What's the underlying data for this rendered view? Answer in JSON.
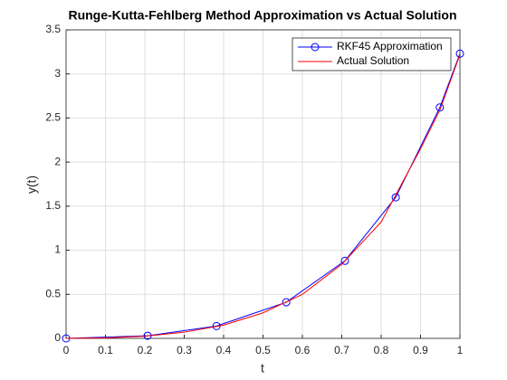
{
  "chart_data": {
    "type": "line",
    "title": "Runge-Kutta-Fehlberg Method Approximation vs Actual Solution",
    "x_label": "t",
    "y_label": "y(t)",
    "xlim": [
      0,
      1
    ],
    "xticks": [
      0,
      0.1,
      0.2,
      0.3,
      0.4,
      0.5,
      0.6,
      0.7,
      0.8,
      0.9,
      1
    ],
    "ylim": [
      0,
      3.5
    ],
    "yticks": [
      0,
      0.5,
      1,
      1.5,
      2,
      2.5,
      3,
      3.5
    ],
    "grid": true,
    "legend": "top-right",
    "series": [
      {
        "name": "RKF45 Approximation",
        "color": "#0000ff",
        "marker": "circle",
        "x": [
          0,
          0.207,
          0.382,
          0.559,
          0.708,
          0.837,
          0.949,
          1
        ],
        "values": [
          0,
          0.03,
          0.14,
          0.41,
          0.88,
          1.6,
          2.62,
          3.23
        ]
      },
      {
        "name": "Actual Solution",
        "color": "#ff0000",
        "x": [
          0,
          0.1,
          0.2,
          0.3,
          0.4,
          0.5,
          0.6,
          0.7,
          0.8,
          0.9,
          0.95,
          1
        ],
        "values": [
          0,
          0.005,
          0.025,
          0.07,
          0.15,
          0.29,
          0.5,
          0.84,
          1.32,
          2.15,
          2.6,
          3.22
        ]
      }
    ]
  }
}
